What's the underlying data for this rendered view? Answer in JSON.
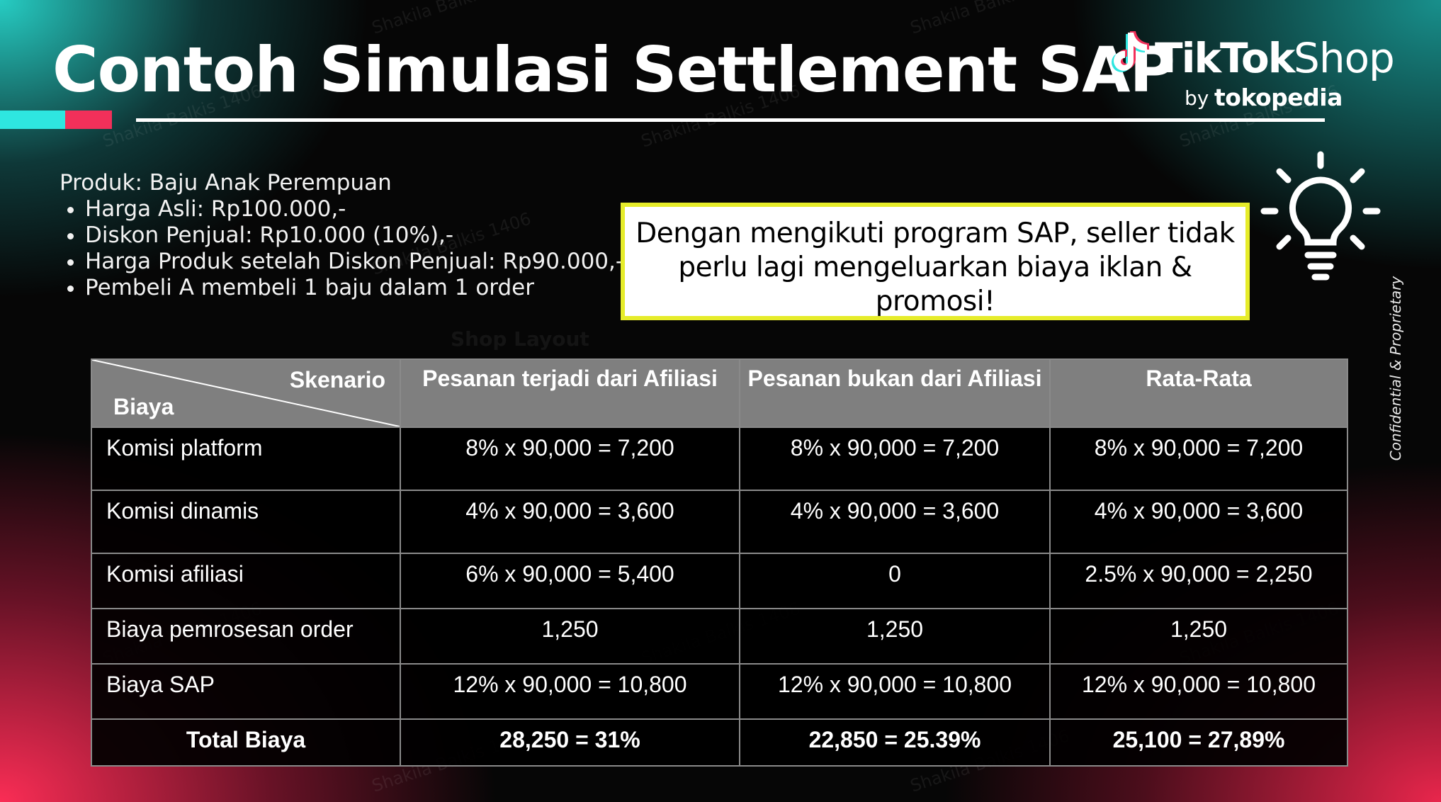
{
  "slide": {
    "title": "Contoh Simulasi Settlement SAP",
    "side_note": "Confidential & Proprietary",
    "ghost_text": "Shop Layout",
    "watermark": "Shakila Balkis 1406",
    "colors": {
      "teal": "#2ee6e0",
      "pink": "#f2305a",
      "callout_border": "#e6ec2a",
      "table_header": "#7f7f7f"
    }
  },
  "logo": {
    "brand": "TikTok",
    "suffix": "Shop",
    "by": "by",
    "partner": "tokopedia",
    "icon": "tiktok-note-icon"
  },
  "product": {
    "heading": "Produk: Baju Anak Perempuan",
    "bullets": [
      "Harga Asli: Rp100.000,-",
      "Diskon Penjual: Rp10.000 (10%),-",
      "Harga Produk setelah Diskon Penjual: Rp90.000,-",
      "Pembeli A membeli 1 baju dalam 1 order"
    ]
  },
  "callout": {
    "text": "Dengan mengikuti program SAP, seller tidak perlu lagi mengeluarkan biaya iklan & promosi!",
    "icon": "lightbulb-icon"
  },
  "table": {
    "corner_top": "Skenario",
    "corner_bottom": "Biaya",
    "headers": [
      "Pesanan terjadi dari Afiliasi",
      "Pesanan bukan dari Afiliasi",
      "Rata-Rata"
    ],
    "rows": [
      {
        "label": "Komisi platform",
        "cells": [
          "8% x 90,000 = 7,200",
          "8% x 90,000 = 7,200",
          "8% x 90,000 = 7,200"
        ]
      },
      {
        "label": "Komisi dinamis",
        "cells": [
          "4% x 90,000 = 3,600",
          "4% x 90,000 = 3,600",
          "4% x 90,000 = 3,600"
        ]
      },
      {
        "label": "Komisi afiliasi",
        "cells": [
          "6% x 90,000 = 5,400",
          "0",
          "2.5% x 90,000 = 2,250"
        ]
      },
      {
        "label": "Biaya pemrosesan order",
        "cells": [
          "1,250",
          "1,250",
          "1,250"
        ]
      },
      {
        "label": "Biaya SAP",
        "cells": [
          "12% x 90,000 = 10,800",
          "12% x 90,000 = 10,800",
          "12% x 90,000 = 10,800"
        ]
      },
      {
        "label": "Total Biaya",
        "cells": [
          "28,250 = 31%",
          "22,850 = 25.39%",
          "25,100 = 27,89%"
        ]
      }
    ]
  }
}
